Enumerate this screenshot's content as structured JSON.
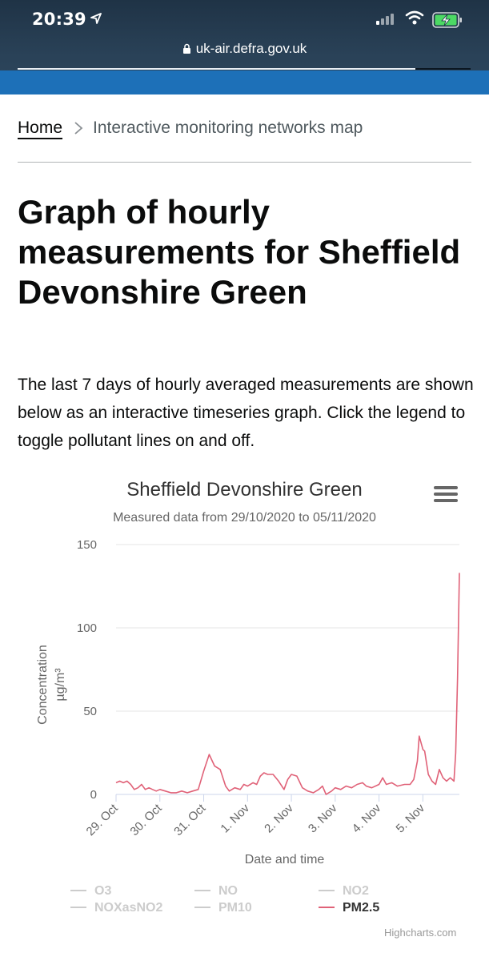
{
  "status_bar": {
    "time": "20:39"
  },
  "browser": {
    "url": "uk-air.defra.gov.uk"
  },
  "breadcrumb": {
    "home": "Home",
    "current": "Interactive monitoring networks map"
  },
  "page": {
    "title": "Graph of hourly measurements for Sheffield Devonshire Green",
    "intro": "The last 7 days of hourly averaged measurements are shown below as an interactive timeseries graph. Click the legend to toggle pollutant lines on and off."
  },
  "chart_data": {
    "type": "line",
    "title": "Sheffield Devonshire Green",
    "subtitle": "Measured data from 29/10/2020 to 05/11/2020",
    "xlabel": "Date and time",
    "ylabel": "Concentration µg/m³",
    "ylim": [
      0,
      150
    ],
    "yticks": [
      "0",
      "50",
      "100",
      "150"
    ],
    "xlim": [
      "2020-10-29 00:00",
      "2020-11-05 20:00"
    ],
    "xticks": [
      {
        "label": "29. Oct",
        "date": "2020-10-29 00:00"
      },
      {
        "label": "30. Oct",
        "date": "2020-10-30 00:00"
      },
      {
        "label": "31. Oct",
        "date": "2020-10-31 00:00"
      },
      {
        "label": "1. Nov",
        "date": "2020-11-01 00:00"
      },
      {
        "label": "2. Nov",
        "date": "2020-11-02 00:00"
      },
      {
        "label": "3. Nov",
        "date": "2020-11-03 00:00"
      },
      {
        "label": "4. Nov",
        "date": "2020-11-04 00:00"
      },
      {
        "label": "5. Nov",
        "date": "2020-11-05 00:00"
      }
    ],
    "grid": true,
    "legend_position": "bottom",
    "series": [
      {
        "name": "O3",
        "visible": false,
        "points": []
      },
      {
        "name": "NO",
        "visible": false,
        "points": []
      },
      {
        "name": "NO2",
        "visible": false,
        "points": []
      },
      {
        "name": "NOXasNO2",
        "visible": false,
        "points": []
      },
      {
        "name": "PM10",
        "visible": false,
        "points": []
      },
      {
        "name": "PM2.5",
        "visible": true,
        "color": "#e06278",
        "points": [
          [
            "2020-10-29 00:00",
            7
          ],
          [
            "2020-10-29 02:00",
            8
          ],
          [
            "2020-10-29 04:00",
            7
          ],
          [
            "2020-10-29 06:00",
            8
          ],
          [
            "2020-10-29 08:00",
            6
          ],
          [
            "2020-10-29 10:00",
            3
          ],
          [
            "2020-10-29 12:00",
            4
          ],
          [
            "2020-10-29 14:00",
            6
          ],
          [
            "2020-10-29 16:00",
            3
          ],
          [
            "2020-10-29 18:00",
            4
          ],
          [
            "2020-10-29 20:00",
            3
          ],
          [
            "2020-10-29 22:00",
            2
          ],
          [
            "2020-10-30 00:00",
            3
          ],
          [
            "2020-10-30 03:00",
            2
          ],
          [
            "2020-10-30 06:00",
            1
          ],
          [
            "2020-10-30 09:00",
            1
          ],
          [
            "2020-10-30 12:00",
            2
          ],
          [
            "2020-10-30 15:00",
            1
          ],
          [
            "2020-10-30 18:00",
            2
          ],
          [
            "2020-10-30 21:00",
            3
          ],
          [
            "2020-10-31 00:00",
            14
          ],
          [
            "2020-10-31 03:00",
            24
          ],
          [
            "2020-10-31 06:00",
            17
          ],
          [
            "2020-10-31 09:00",
            15
          ],
          [
            "2020-10-31 12:00",
            5
          ],
          [
            "2020-10-31 14:00",
            2
          ],
          [
            "2020-10-31 17:00",
            4
          ],
          [
            "2020-10-31 20:00",
            3
          ],
          [
            "2020-10-31 22:00",
            6
          ],
          [
            "2020-11-01 00:00",
            5
          ],
          [
            "2020-11-01 03:00",
            7
          ],
          [
            "2020-11-01 05:00",
            6
          ],
          [
            "2020-11-01 07:00",
            11
          ],
          [
            "2020-11-01 09:00",
            13
          ],
          [
            "2020-11-01 11:00",
            12
          ],
          [
            "2020-11-01 14:00",
            12
          ],
          [
            "2020-11-01 17:00",
            8
          ],
          [
            "2020-11-01 20:00",
            3
          ],
          [
            "2020-11-01 22:00",
            9
          ],
          [
            "2020-11-02 00:00",
            12
          ],
          [
            "2020-11-02 03:00",
            11
          ],
          [
            "2020-11-02 06:00",
            4
          ],
          [
            "2020-11-02 09:00",
            2
          ],
          [
            "2020-11-02 12:00",
            1
          ],
          [
            "2020-11-02 15:00",
            3
          ],
          [
            "2020-11-02 17:00",
            5
          ],
          [
            "2020-11-02 19:00",
            0
          ],
          [
            "2020-11-02 22:00",
            2
          ],
          [
            "2020-11-03 00:00",
            4
          ],
          [
            "2020-11-03 03:00",
            3
          ],
          [
            "2020-11-03 06:00",
            5
          ],
          [
            "2020-11-03 09:00",
            4
          ],
          [
            "2020-11-03 12:00",
            6
          ],
          [
            "2020-11-03 15:00",
            7
          ],
          [
            "2020-11-03 17:00",
            5
          ],
          [
            "2020-11-03 20:00",
            4
          ],
          [
            "2020-11-04 00:00",
            6
          ],
          [
            "2020-11-04 02:00",
            10
          ],
          [
            "2020-11-04 04:00",
            6
          ],
          [
            "2020-11-04 07:00",
            7
          ],
          [
            "2020-11-04 10:00",
            5
          ],
          [
            "2020-11-04 14:00",
            6
          ],
          [
            "2020-11-04 17:00",
            6
          ],
          [
            "2020-11-04 19:00",
            9
          ],
          [
            "2020-11-04 21:00",
            20
          ],
          [
            "2020-11-04 22:00",
            35
          ],
          [
            "2020-11-05 00:00",
            27
          ],
          [
            "2020-11-05 01:00",
            26
          ],
          [
            "2020-11-05 03:00",
            12
          ],
          [
            "2020-11-05 05:00",
            8
          ],
          [
            "2020-11-05 07:00",
            6
          ],
          [
            "2020-11-05 09:00",
            15
          ],
          [
            "2020-11-05 11:00",
            10
          ],
          [
            "2020-11-05 13:00",
            8
          ],
          [
            "2020-11-05 15:00",
            10
          ],
          [
            "2020-11-05 17:00",
            8
          ],
          [
            "2020-11-05 18:00",
            25
          ],
          [
            "2020-11-05 19:00",
            70
          ],
          [
            "2020-11-05 20:00",
            133
          ]
        ]
      }
    ]
  },
  "credits": "Highcharts.com",
  "colors": {
    "govuk_blue": "#1d70b8",
    "pm25": "#e06278",
    "legend_hidden": "#cccccc",
    "grid": "#e6e6e6",
    "axis_text": "#666666"
  },
  "icons": [
    "location-arrow-icon",
    "signal-bars-icon",
    "wifi-icon",
    "battery-charging-icon",
    "lock-icon",
    "chevron-right-icon",
    "hamburger-menu-icon"
  ]
}
